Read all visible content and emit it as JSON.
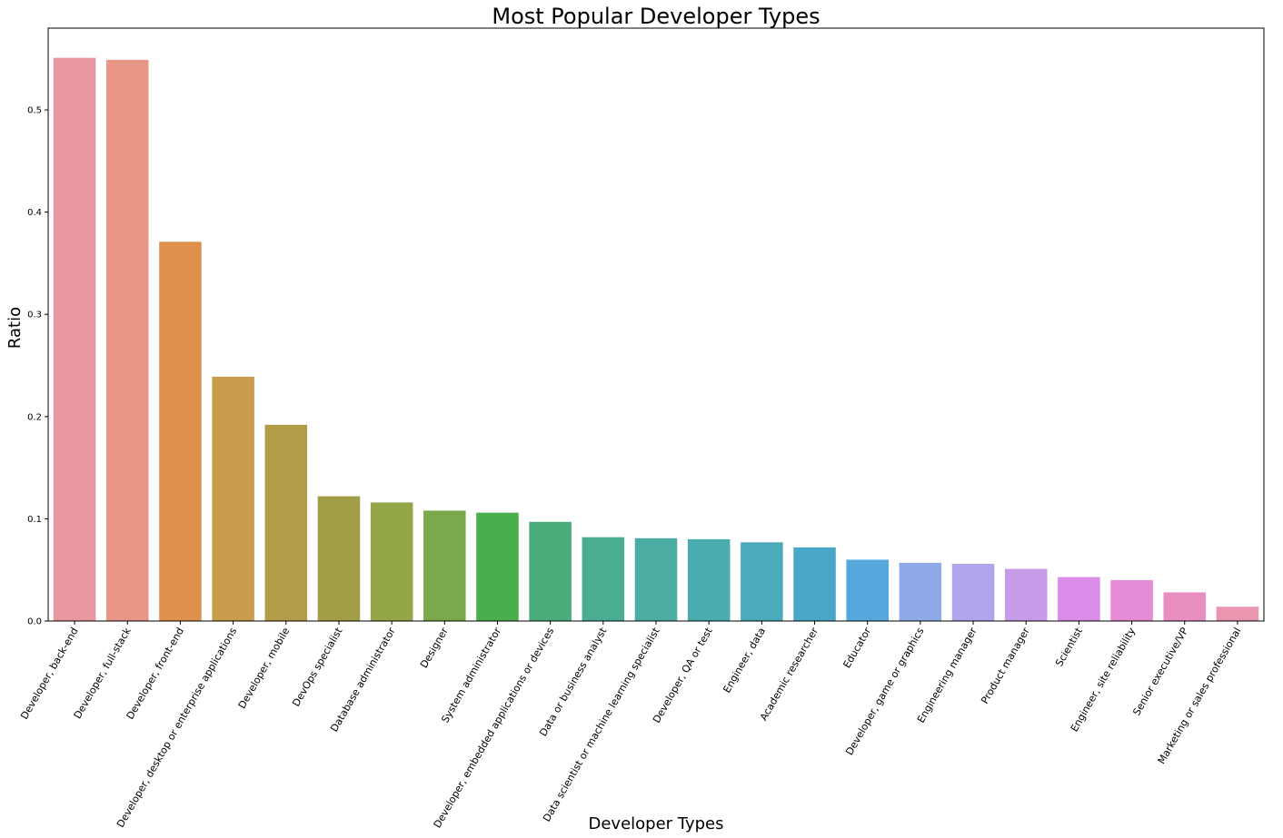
{
  "chart_data": {
    "type": "bar",
    "title": "Most Popular Developer Types",
    "xlabel": "Developer Types",
    "ylabel": "Ratio",
    "ylim": [
      0,
      0.58
    ],
    "yticks": [
      "0.0",
      "0.1",
      "0.2",
      "0.3",
      "0.4",
      "0.5"
    ],
    "grid": false,
    "categories": [
      "Developer, back-end",
      "Developer, full-stack",
      "Developer, front-end",
      "Developer, desktop or enterprise applications",
      "Developer, mobile",
      "DevOps specialist",
      "Database administrator",
      "Designer",
      "System administrator",
      "Developer, embedded applications or devices",
      "Data or business analyst",
      "Data scientist or machine learning specialist",
      "Developer, QA or test",
      "Engineer, data",
      "Academic researcher",
      "Educator",
      "Developer, game or graphics",
      "Engineering manager",
      "Product manager",
      "Scientist",
      "Engineer, site reliability",
      "Senior executive/VP",
      "Marketing or sales professional"
    ],
    "values": [
      0.551,
      0.549,
      0.371,
      0.239,
      0.192,
      0.122,
      0.116,
      0.108,
      0.106,
      0.097,
      0.082,
      0.081,
      0.08,
      0.077,
      0.072,
      0.06,
      0.057,
      0.056,
      0.051,
      0.043,
      0.04,
      0.028,
      0.014
    ],
    "colors": [
      "#e8969f",
      "#e89685",
      "#de914d",
      "#c99b4d",
      "#b29c48",
      "#a19e47",
      "#93a648",
      "#7ba84b",
      "#4aae4c",
      "#4aab7b",
      "#4aad92",
      "#4aaca2",
      "#4aacaf",
      "#4aabbb",
      "#4aa7c7",
      "#56a8dc",
      "#8eabe8",
      "#b0a4ec",
      "#c59be8",
      "#da8de8",
      "#e68cd6",
      "#e88ec0",
      "#ea96af"
    ]
  }
}
